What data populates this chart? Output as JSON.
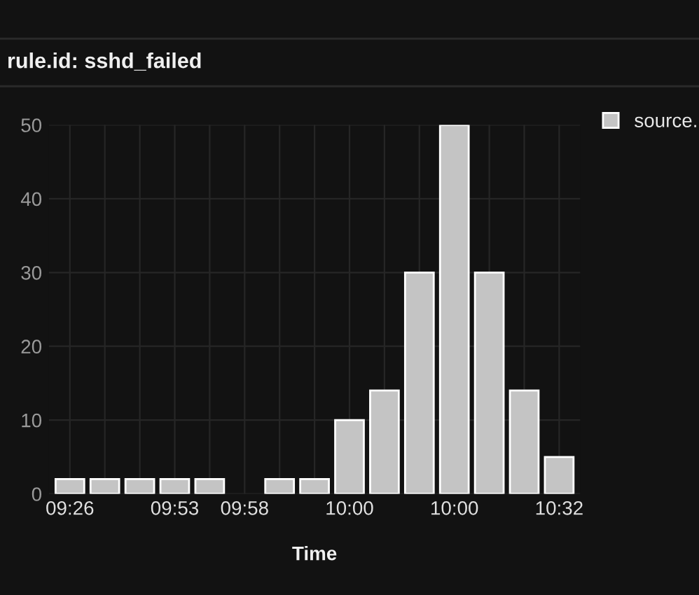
{
  "chart_data": {
    "type": "bar",
    "title": "rule.id: sshd_failed",
    "xlabel": "Time",
    "categories": [
      "09:26",
      null,
      null,
      "09:53",
      null,
      "09:58",
      null,
      null,
      "10:00",
      null,
      null,
      "10:00",
      null,
      null,
      "10:32"
    ],
    "series": [
      {
        "name": "source.",
        "color": "#c4c4c4",
        "values": [
          2,
          2,
          2,
          2,
          2,
          null,
          2,
          2,
          10,
          14,
          30,
          50,
          30,
          14,
          5
        ]
      }
    ],
    "ylim": [
      0,
      50
    ],
    "yticks": [
      0,
      10,
      20,
      30,
      40,
      50
    ],
    "grid": true,
    "legend": "top right"
  }
}
